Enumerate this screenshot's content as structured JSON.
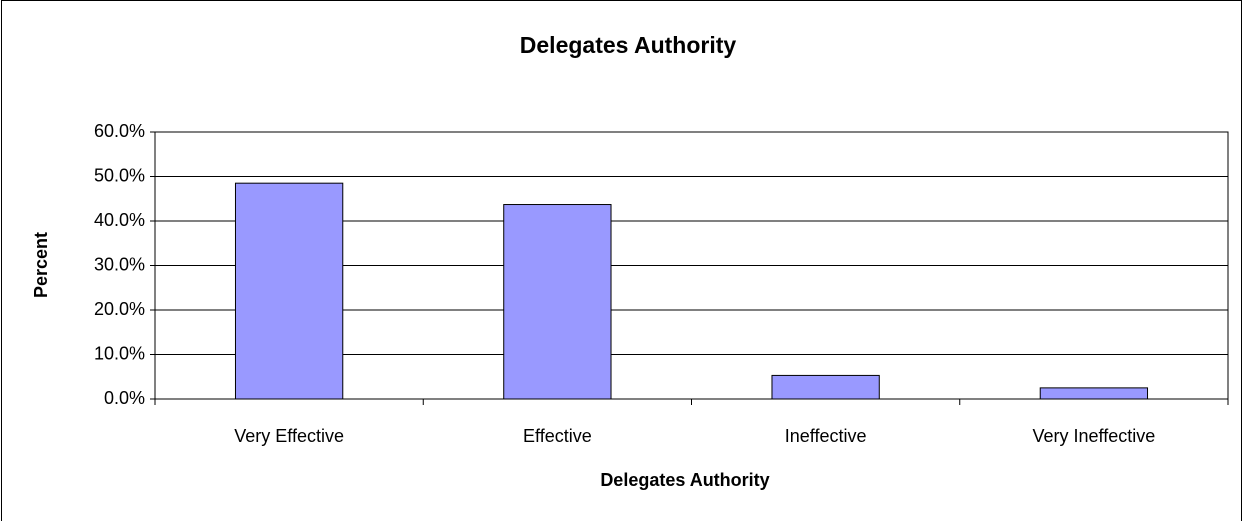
{
  "chart_data": {
    "type": "bar",
    "title": "Delegates Authority",
    "x_label": "Delegates Authority",
    "y_label": "Percent",
    "categories": [
      "Very Effective",
      "Effective",
      "Ineffective",
      "Very Ineffective"
    ],
    "values": [
      48.5,
      43.7,
      5.3,
      2.5
    ],
    "color": "#9999ff",
    "ylim": [
      0,
      60
    ],
    "yticks": [
      {
        "value": 0,
        "label": "0.0%"
      },
      {
        "value": 10,
        "label": "10.0%"
      },
      {
        "value": 20,
        "label": "20.0%"
      },
      {
        "value": 30,
        "label": "30.0%"
      },
      {
        "value": 40,
        "label": "40.0%"
      },
      {
        "value": 50,
        "label": "50.0%"
      },
      {
        "value": 60,
        "label": "60.0%"
      }
    ],
    "grid": true
  }
}
